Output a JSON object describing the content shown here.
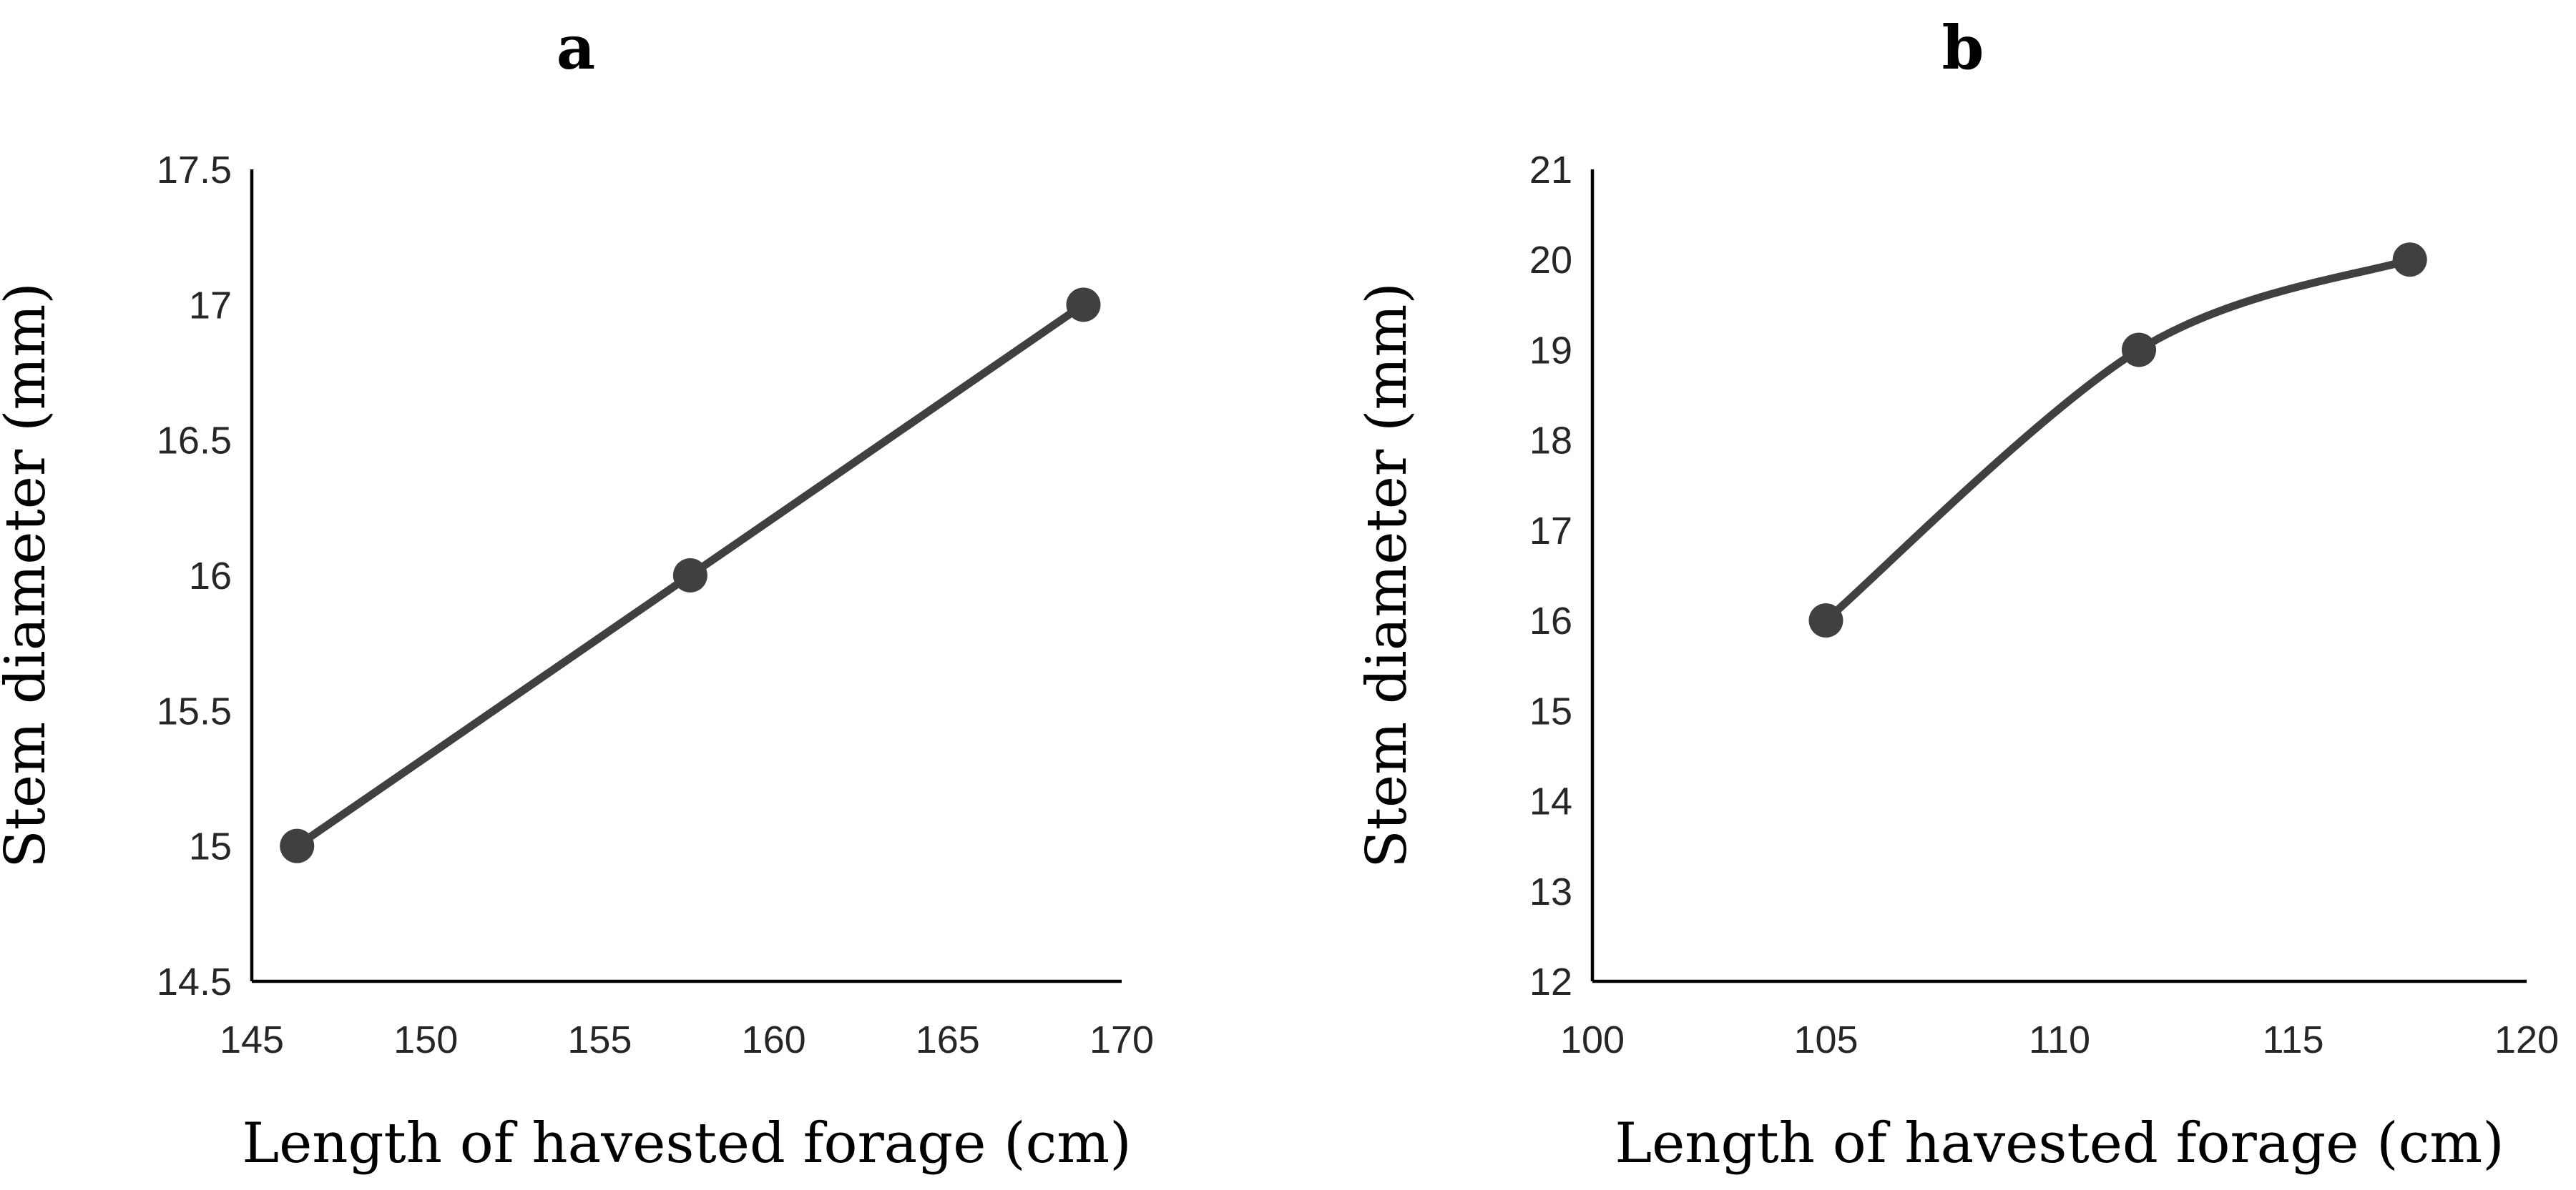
{
  "chart_data": [
    {
      "panel": "a",
      "type": "line",
      "smooth": false,
      "title": "a",
      "xlabel": "Length of havested forage (cm)",
      "ylabel": "Stem diameter (mm)",
      "xlim": [
        145,
        170
      ],
      "ylim": [
        14.5,
        17.5
      ],
      "xticks": [
        145,
        150,
        155,
        160,
        165,
        170
      ],
      "yticks": [
        14.5,
        15,
        15.5,
        16,
        16.5,
        17,
        17.5
      ],
      "grid": false,
      "series": [
        {
          "name": "Stem diameter",
          "color": "#404040",
          "x": [
            146.3,
            157.6,
            168.9
          ],
          "y": [
            15,
            16,
            17
          ]
        }
      ]
    },
    {
      "panel": "b",
      "type": "line",
      "smooth": true,
      "title": "b",
      "xlabel": "Length of havested forage (cm)",
      "ylabel": "Stem diameter (mm)",
      "xlim": [
        100,
        120
      ],
      "ylim": [
        12,
        21
      ],
      "xticks": [
        100,
        105,
        110,
        115,
        120
      ],
      "yticks": [
        12,
        13,
        14,
        15,
        16,
        17,
        18,
        19,
        20,
        21
      ],
      "grid": false,
      "series": [
        {
          "name": "Stem diameter",
          "color": "#404040",
          "x": [
            105,
            111.7,
            117.5
          ],
          "y": [
            16,
            19,
            20
          ]
        }
      ]
    }
  ]
}
